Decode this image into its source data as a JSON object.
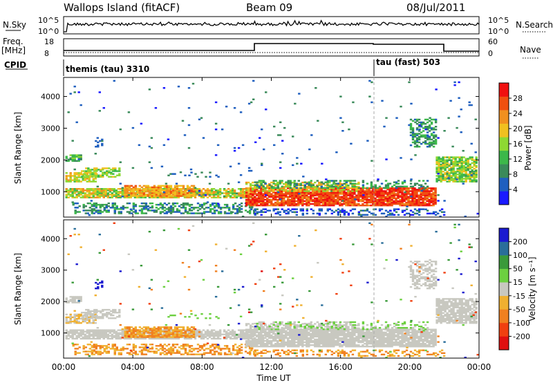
{
  "header": {
    "title": "Wallops Island (fitACF)",
    "beam": "Beam 09",
    "date": "08/Jul/2011"
  },
  "top_panels": {
    "nsky_label": "N.Sky",
    "nsearch_label": "N.Search",
    "nsky_ticks": [
      "10^5",
      "10^0"
    ],
    "nsky_right_ticks": [
      "10^5",
      "10^0"
    ],
    "freq_label": "Freq.",
    "freq_unit": "[MHz]",
    "freq_ticks": [
      "18",
      "8"
    ],
    "nave_label": "Nave",
    "nave_ticks": [
      "60",
      "0"
    ],
    "cpid_label": "CPID",
    "cpid_segments": [
      {
        "label": "themis (tau) 3310",
        "start_hour": 0
      },
      {
        "label": "tau (fast) 503",
        "start_hour": 18
      }
    ]
  },
  "chart_data": [
    {
      "type": "heatmap",
      "quantity": "power",
      "ylabel": "Slant Range [km]",
      "xlabel": "Time UT",
      "xlim_hours": [
        0,
        24
      ],
      "ylim": [
        200,
        4600
      ],
      "yticks": [
        "1000",
        "2000",
        "3000",
        "4000"
      ],
      "colorbar": {
        "label": "Power [dB]",
        "ticks": [
          "4",
          "8",
          "12",
          "16",
          "20",
          "24",
          "28"
        ],
        "range": [
          0,
          32
        ],
        "colors": [
          "#1a1aff",
          "#1f5fbf",
          "#3a8a5a",
          "#3cb84a",
          "#8ed833",
          "#f0c020",
          "#f09020",
          "#f05010",
          "#f01010"
        ]
      }
    },
    {
      "type": "heatmap",
      "quantity": "velocity",
      "ylabel": "Slant Range [km]",
      "xlabel": "Time UT",
      "xlim_hours": [
        0,
        24
      ],
      "ylim": [
        200,
        4600
      ],
      "yticks": [
        "1000",
        "2000",
        "3000",
        "4000"
      ],
      "colorbar": {
        "label": "Velocity [m s⁻¹]",
        "ticks": [
          "200",
          "100",
          "50",
          "15",
          "-15",
          "-50",
          "-100",
          "-200"
        ],
        "colors": [
          "#1a1ad0",
          "#2a6e9a",
          "#3a9a3a",
          "#6cd040",
          "#c8c8c0",
          "#f0b030",
          "#f08020",
          "#f04010",
          "#e01010"
        ]
      }
    }
  ],
  "time_axis": {
    "ticks": [
      "00:00",
      "04:00",
      "08:00",
      "12:00",
      "16:00",
      "20:00",
      "00:00"
    ],
    "label": "Time UT"
  }
}
